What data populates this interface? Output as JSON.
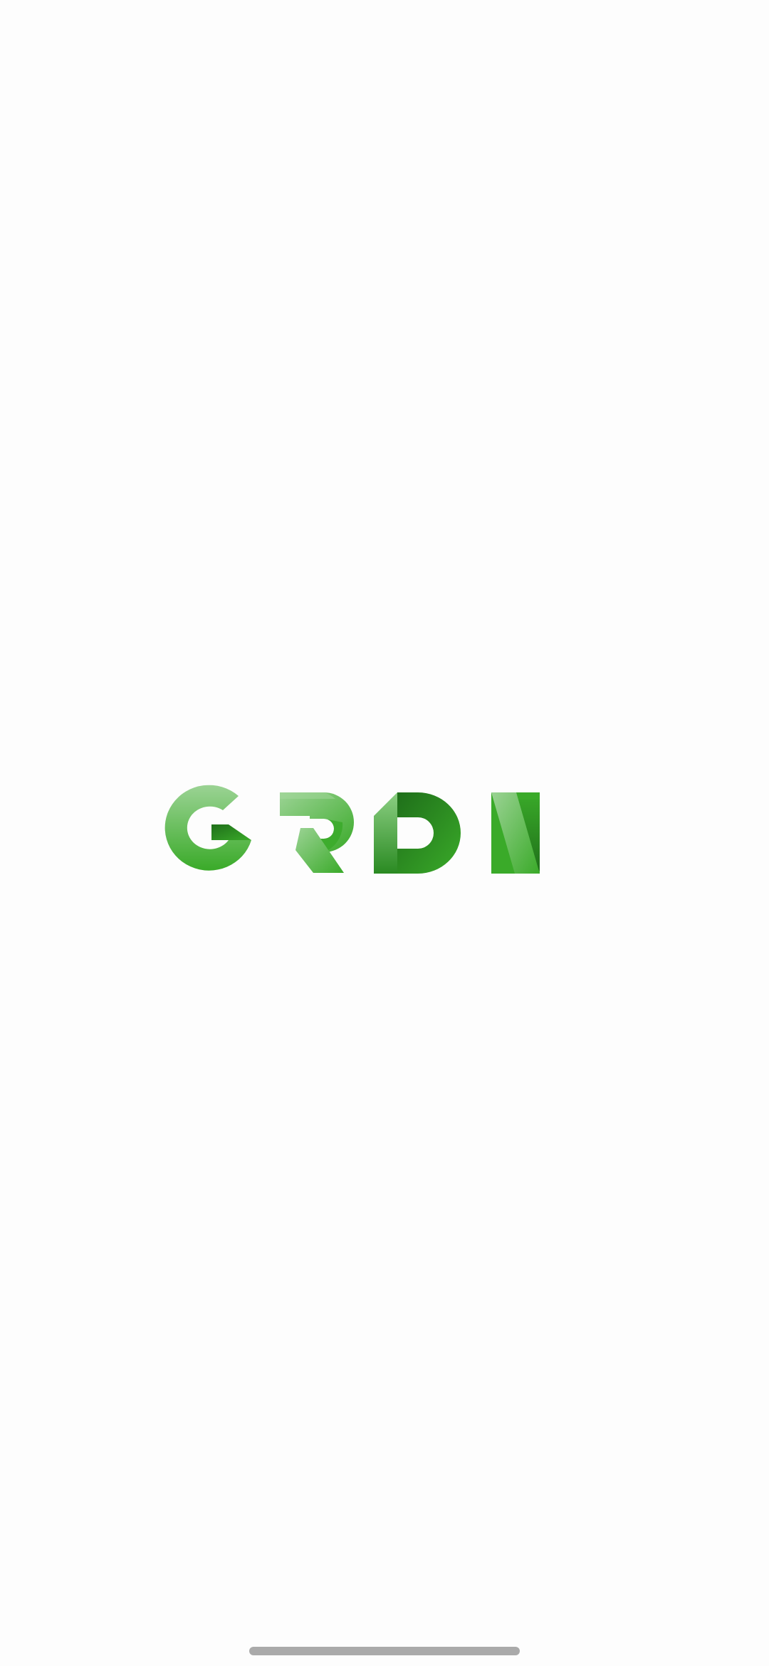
{
  "splash": {
    "logo_text": "GRDN",
    "logo_icon": "grdn-wordmark-icon"
  },
  "colors": {
    "background": "#fdfdfd",
    "green_light": "#9bd394",
    "green_mid": "#3aaa29",
    "green_dark": "#1f6f1a",
    "home_indicator": "#aaaaaa"
  },
  "system": {
    "home_indicator_icon": "home-indicator-bar"
  }
}
